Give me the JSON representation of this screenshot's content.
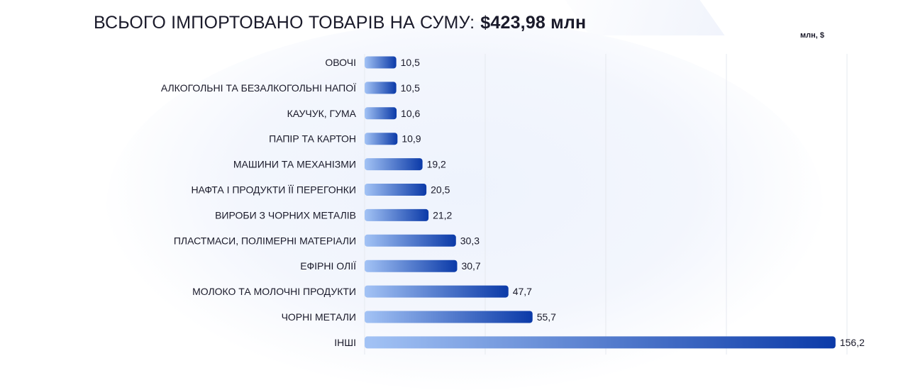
{
  "title": {
    "prefix": "ВСЬОГО ІМПОРТОВАНО ТОВАРІВ НА СУМУ:",
    "amount": "$423,98 млн"
  },
  "unit_label": "млн, $",
  "colors": {
    "bar_start": "#a3c3f5",
    "bar_end": "#0b3aa8",
    "grid": "#e6e9ef",
    "text": "#1a1a2a"
  },
  "chart_data": {
    "type": "bar",
    "orientation": "horizontal",
    "categories": [
      "ОВОЧІ",
      "АЛКОГОЛЬНІ ТА БЕЗАЛКОГОЛЬНІ НАПОЇ",
      "КАУЧУК, ГУМА",
      "ПАПІР ТА КАРТОН",
      "МАШИНИ ТА МЕХАНІЗМИ",
      "НАФТА І ПРОДУКТИ ЇЇ ПЕРЕГОНКИ",
      "ВИРОБИ З ЧОРНИХ МЕТАЛІВ",
      "ПЛАСТМАСИ, ПОЛІМЕРНІ МАТЕРІАЛИ",
      "ЕФІРНІ ОЛІЇ",
      "МОЛОКО ТА МОЛОЧНІ ПРОДУКТИ",
      "ЧОРНІ МЕТАЛИ",
      "ІНШІ"
    ],
    "values": [
      10.5,
      10.5,
      10.6,
      10.9,
      19.2,
      20.5,
      21.2,
      30.3,
      30.7,
      47.7,
      55.7,
      156.2
    ],
    "value_labels": [
      "10,5",
      "10,5",
      "10,6",
      "10,9",
      "19,2",
      "20,5",
      "21,2",
      "30,3",
      "30,7",
      "47,7",
      "55,7",
      "156,2"
    ],
    "xlim": [
      0,
      160
    ],
    "grid": true
  }
}
